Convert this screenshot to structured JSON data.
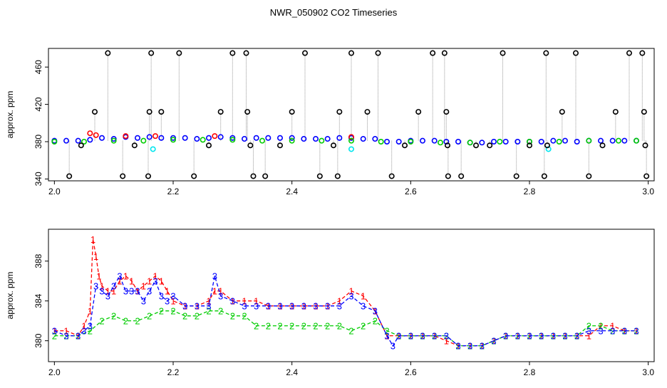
{
  "figure_title": "NWR_050902  CO2 Timeseries",
  "chart_data": [
    {
      "type": "scatter",
      "title": "",
      "xlabel": "",
      "ylabel": "approx. ppm",
      "xlim": [
        1.99,
        3.01
      ],
      "ylim": [
        338,
        480
      ],
      "x_ticks": [
        2.0,
        2.2,
        2.4,
        2.6,
        2.8,
        3.0
      ],
      "x_tick_labels": [
        "2.0",
        "2.2",
        "2.4",
        "2.6",
        "2.8",
        "3.0"
      ],
      "y_ticks": [
        340,
        380,
        420,
        460
      ],
      "y_tick_labels": [
        "340",
        "380",
        "420",
        "460"
      ],
      "grid": false,
      "series": [
        {
          "color": "#0000ff",
          "x": [
            2.0,
            2.02,
            2.04,
            2.06,
            2.08,
            2.1,
            2.12,
            2.14,
            2.16,
            2.18,
            2.2,
            2.22,
            2.24,
            2.26,
            2.28,
            2.3,
            2.32,
            2.34,
            2.36,
            2.38,
            2.4,
            2.42,
            2.44,
            2.46,
            2.48,
            2.5,
            2.52,
            2.54,
            2.56,
            2.58,
            2.6,
            2.62,
            2.64,
            2.66,
            2.68,
            2.7,
            2.72,
            2.74,
            2.76,
            2.78,
            2.8,
            2.82,
            2.84,
            2.86,
            2.88,
            2.9,
            2.92,
            2.94,
            2.96,
            2.98
          ],
          "y": [
            381,
            381,
            381,
            382,
            384,
            383,
            385,
            384,
            385,
            384,
            384,
            384,
            383,
            384,
            385,
            384,
            383,
            384,
            384,
            384,
            384,
            383,
            383,
            383,
            384,
            384,
            383,
            383,
            380,
            380,
            381,
            381,
            381,
            380,
            380,
            379,
            379,
            380,
            380,
            380,
            380,
            380,
            381,
            381,
            380,
            381,
            381,
            381,
            381,
            381
          ]
        },
        {
          "color": "#ff0000",
          "x": [
            2.06,
            2.07,
            2.12,
            2.17,
            2.27,
            2.5
          ],
          "y": [
            389,
            387,
            386,
            386,
            386,
            385
          ]
        },
        {
          "color": "#00cc00",
          "x": [
            2.0,
            2.05,
            2.1,
            2.15,
            2.2,
            2.25,
            2.3,
            2.35,
            2.4,
            2.45,
            2.5,
            2.55,
            2.6,
            2.65,
            2.7,
            2.75,
            2.8,
            2.85,
            2.9,
            2.95,
            2.98
          ],
          "y": [
            380,
            380,
            381,
            381,
            382,
            382,
            382,
            381,
            381,
            381,
            381,
            380,
            380,
            379,
            379,
            380,
            380,
            380,
            381,
            381,
            381
          ]
        },
        {
          "color": "#00e5ee",
          "x": [
            2.166,
            2.5,
            2.832
          ],
          "y": [
            372,
            372,
            372
          ]
        },
        {
          "color": "#000000",
          "x": [
            2.025,
            2.045,
            2.068,
            2.09,
            2.115,
            2.135,
            2.158,
            2.16,
            2.163,
            2.18,
            2.21,
            2.235,
            2.26,
            2.28,
            2.3,
            2.323,
            2.325,
            2.33,
            2.335,
            2.355,
            2.38,
            2.4,
            2.422,
            2.447,
            2.47,
            2.477,
            2.48,
            2.5,
            2.527,
            2.545,
            2.568,
            2.59,
            2.613,
            2.637,
            2.657,
            2.66,
            2.662,
            2.663,
            2.685,
            2.71,
            2.733,
            2.755,
            2.778,
            2.8,
            2.825,
            2.828,
            2.83,
            2.855,
            2.878,
            2.9,
            2.923,
            2.945,
            2.968,
            2.99,
            2.993,
            2.995,
            2.997
          ],
          "y": [
            343,
            376,
            412,
            475,
            343,
            376,
            343,
            412,
            475,
            412,
            475,
            343,
            376,
            412,
            475,
            475,
            412,
            376,
            343,
            343,
            376,
            412,
            475,
            343,
            376,
            343,
            412,
            475,
            412,
            475,
            343,
            376,
            412,
            475,
            475,
            412,
            376,
            343,
            343,
            376,
            376,
            475,
            343,
            376,
            343,
            475,
            376,
            412,
            475,
            343,
            376,
            412,
            475,
            475,
            412,
            376,
            343
          ]
        }
      ]
    },
    {
      "type": "line",
      "title": "",
      "xlabel": "",
      "ylabel": "approx. ppm",
      "xlim": [
        1.99,
        3.01
      ],
      "ylim": [
        377.9,
        391.2
      ],
      "x_ticks": [
        2.0,
        2.2,
        2.4,
        2.6,
        2.8,
        3.0
      ],
      "x_tick_labels": [
        "2.0",
        "2.2",
        "2.4",
        "2.6",
        "2.8",
        "3.0"
      ],
      "y_ticks": [
        380,
        384,
        388
      ],
      "y_tick_labels": [
        "380",
        "384",
        "388"
      ],
      "grid": false,
      "series": [
        {
          "marker": "1",
          "color": "#ff0000",
          "line_style": "dashed",
          "x": [
            2.0,
            2.02,
            2.04,
            2.05,
            2.06,
            2.065,
            2.07,
            2.075,
            2.08,
            2.09,
            2.1,
            2.11,
            2.12,
            2.13,
            2.14,
            2.15,
            2.16,
            2.17,
            2.18,
            2.19,
            2.2,
            2.22,
            2.24,
            2.26,
            2.27,
            2.28,
            2.3,
            2.32,
            2.34,
            2.36,
            2.38,
            2.4,
            2.42,
            2.44,
            2.46,
            2.48,
            2.5,
            2.52,
            2.54,
            2.56,
            2.58,
            2.6,
            2.62,
            2.64,
            2.66,
            2.68,
            2.7,
            2.72,
            2.74,
            2.76,
            2.78,
            2.8,
            2.82,
            2.84,
            2.86,
            2.88,
            2.9,
            2.92,
            2.94,
            2.96,
            2.98
          ],
          "y": [
            381,
            381,
            380.5,
            381.5,
            383,
            390.2,
            388.5,
            386.5,
            385.5,
            385,
            385,
            386,
            386.5,
            386,
            385,
            385.5,
            386,
            386.5,
            386,
            385,
            384,
            383.5,
            383.5,
            384,
            385,
            385,
            384,
            384,
            384,
            383.5,
            383.5,
            383.5,
            383.5,
            383.5,
            383.5,
            384,
            385,
            384.5,
            383,
            380.5,
            380.5,
            380.5,
            380.5,
            380.5,
            380,
            379.5,
            379.5,
            379.5,
            380,
            380.5,
            380.5,
            380.5,
            380.5,
            380.5,
            380.5,
            380.5,
            380.5,
            381.5,
            381.5,
            381,
            381
          ]
        },
        {
          "marker": "2",
          "color": "#00cc00",
          "line_style": "dashed",
          "x": [
            2.0,
            2.02,
            2.04,
            2.06,
            2.08,
            2.1,
            2.12,
            2.14,
            2.16,
            2.18,
            2.2,
            2.22,
            2.24,
            2.26,
            2.28,
            2.3,
            2.32,
            2.34,
            2.36,
            2.38,
            2.4,
            2.42,
            2.44,
            2.46,
            2.48,
            2.5,
            2.52,
            2.54,
            2.56,
            2.58,
            2.6,
            2.62,
            2.64,
            2.66,
            2.68,
            2.7,
            2.72,
            2.74,
            2.76,
            2.78,
            2.8,
            2.82,
            2.84,
            2.86,
            2.88,
            2.9,
            2.92,
            2.94,
            2.96,
            2.98
          ],
          "y": [
            380.5,
            380.5,
            380.5,
            381,
            382,
            382.5,
            382,
            382,
            382.5,
            383,
            383,
            382.5,
            382.5,
            383,
            383,
            382.5,
            382.5,
            381.5,
            381.5,
            381.5,
            381.5,
            381.5,
            381.5,
            381.5,
            381.5,
            381,
            381.5,
            382,
            381,
            380.5,
            380.5,
            380.5,
            380.5,
            380.5,
            379.5,
            379.5,
            379.5,
            380,
            380.5,
            380.5,
            380.5,
            380.5,
            380.5,
            380.5,
            380.5,
            381.5,
            381.5,
            381,
            381,
            381
          ]
        },
        {
          "marker": "3",
          "color": "#0000ff",
          "line_style": "dashed",
          "x": [
            2.0,
            2.02,
            2.04,
            2.05,
            2.06,
            2.07,
            2.08,
            2.09,
            2.1,
            2.11,
            2.12,
            2.13,
            2.14,
            2.15,
            2.16,
            2.17,
            2.18,
            2.19,
            2.2,
            2.22,
            2.24,
            2.26,
            2.27,
            2.28,
            2.3,
            2.32,
            2.34,
            2.36,
            2.38,
            2.4,
            2.42,
            2.44,
            2.46,
            2.48,
            2.5,
            2.52,
            2.54,
            2.56,
            2.57,
            2.58,
            2.6,
            2.62,
            2.64,
            2.66,
            2.68,
            2.7,
            2.72,
            2.74,
            2.76,
            2.78,
            2.8,
            2.82,
            2.84,
            2.86,
            2.88,
            2.9,
            2.92,
            2.94,
            2.96,
            2.98
          ],
          "y": [
            381,
            380.5,
            380.5,
            381,
            381.5,
            385.5,
            385,
            384.5,
            385.5,
            386.5,
            385,
            385,
            385,
            384,
            385,
            386,
            384.5,
            384,
            384.5,
            383.5,
            383.5,
            383.5,
            386.5,
            384.5,
            384,
            383.5,
            383.5,
            383.5,
            383.5,
            383.5,
            383.5,
            383.5,
            383.5,
            383.5,
            384.5,
            383.5,
            383,
            380.5,
            379.5,
            380.5,
            380.5,
            380.5,
            380.5,
            380.5,
            379.5,
            379.5,
            379.5,
            380,
            380.5,
            380.5,
            380.5,
            380.5,
            380.5,
            380.5,
            380.5,
            381,
            381,
            381,
            381,
            381
          ]
        }
      ]
    }
  ]
}
